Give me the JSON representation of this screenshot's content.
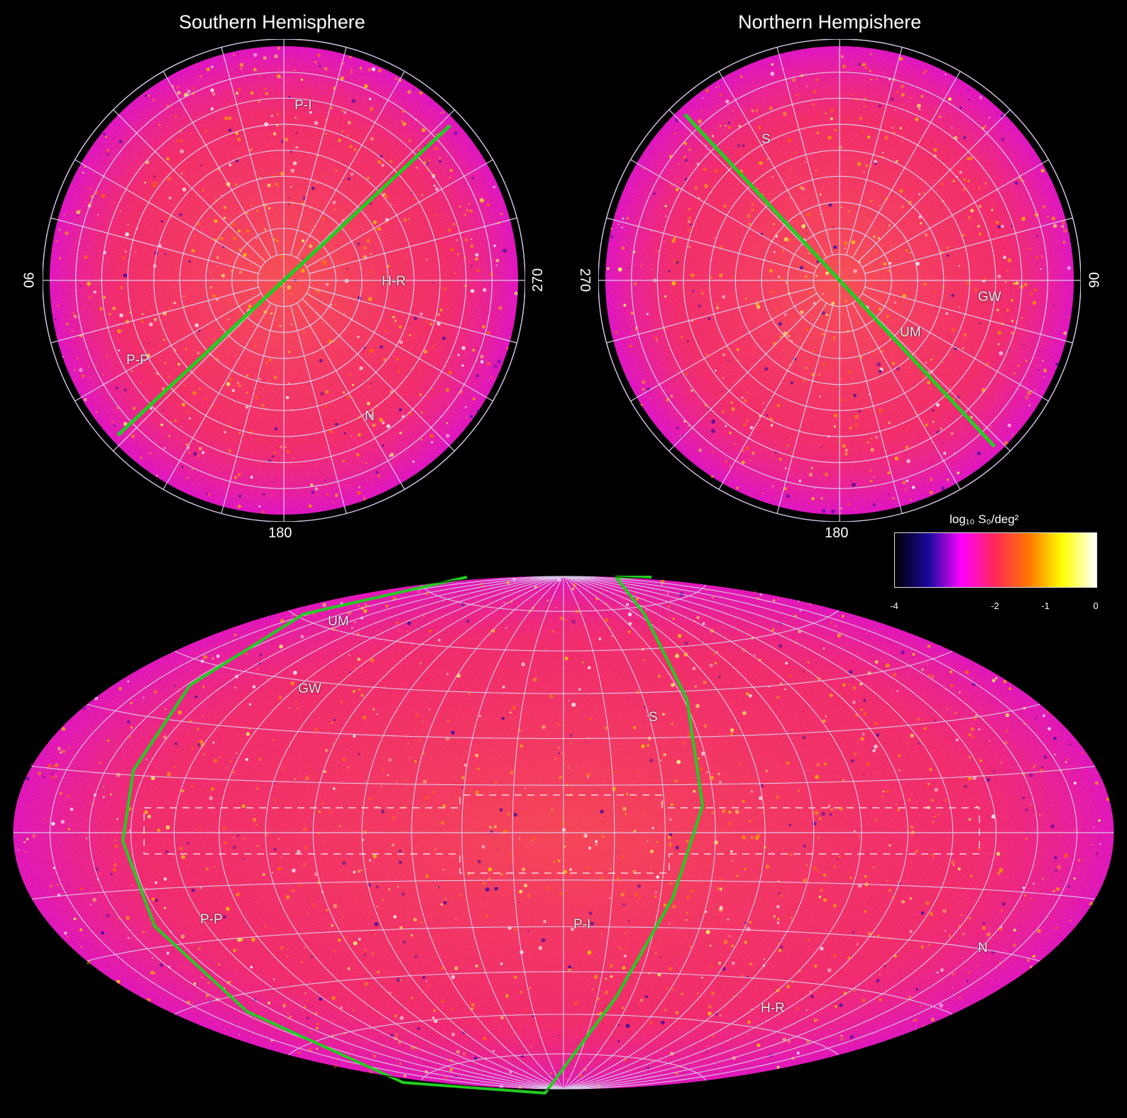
{
  "panels": {
    "south": {
      "title": "Southern Hemisphere",
      "labels": {
        "left": "90",
        "right": "270",
        "bottom": "180"
      },
      "regions": [
        "P-I",
        "H-R",
        "P-P",
        "N"
      ]
    },
    "north": {
      "title": "Northern Hempishere",
      "labels": {
        "left": "270",
        "right": "90",
        "bottom": "180"
      },
      "regions": [
        "S",
        "GW",
        "UM"
      ]
    },
    "allsky": {
      "regions": [
        "UM",
        "GW",
        "S",
        "P-P",
        "P-I",
        "N",
        "H-R"
      ]
    }
  },
  "colorbar": {
    "title": "log₁₀ S₀/deg²",
    "ticks": [
      "-4",
      "-2",
      "-1",
      "0"
    ],
    "tick_values": [
      -4,
      -2,
      -1,
      0
    ],
    "range": [
      -4,
      0
    ],
    "colors": [
      "#000000",
      "#1a0aa0",
      "#ff00ff",
      "#ff2a55",
      "#ff7a00",
      "#ffff00",
      "#ffffff"
    ]
  },
  "overlays": {
    "grid_color": "#d9c8e8",
    "galactic_plane_color": "#22cc22",
    "survey_boundary": "dashed"
  }
}
